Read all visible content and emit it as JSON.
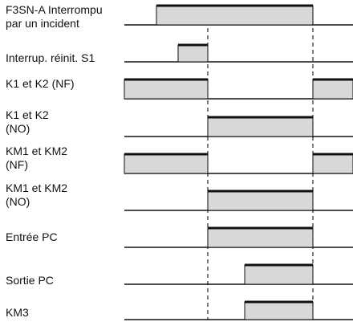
{
  "signals": [
    {
      "label_lines": [
        "F3SN-A Interrompu",
        "par un incident"
      ],
      "pulses": [
        [
          195,
          390
        ]
      ]
    },
    {
      "label_lines": [
        "Interrup. réinit. S1"
      ],
      "pulses": [
        [
          222,
          259
        ]
      ]
    },
    {
      "label_lines": [
        "K1 et K2 (NF)"
      ],
      "pulses": [
        [
          155,
          259
        ],
        [
          390,
          440
        ]
      ]
    },
    {
      "label_lines": [
        "K1 et K2",
        "(NO)"
      ],
      "pulses": [
        [
          259,
          390
        ]
      ]
    },
    {
      "label_lines": [
        "KM1 et KM2",
        "(NF)"
      ],
      "pulses": [
        [
          155,
          259
        ],
        [
          390,
          440
        ]
      ]
    },
    {
      "label_lines": [
        "KM1 et KM2",
        "(NO)"
      ],
      "pulses": [
        [
          259,
          390
        ]
      ]
    },
    {
      "label_lines": [
        "Entrée PC"
      ],
      "pulses": [
        [
          259,
          390
        ]
      ]
    },
    {
      "label_lines": [
        "Sortie PC"
      ],
      "pulses": [
        [
          305,
          390
        ]
      ]
    },
    {
      "label_lines": [
        "KM3"
      ],
      "pulses": [
        [
          305,
          390
        ]
      ]
    }
  ]
}
